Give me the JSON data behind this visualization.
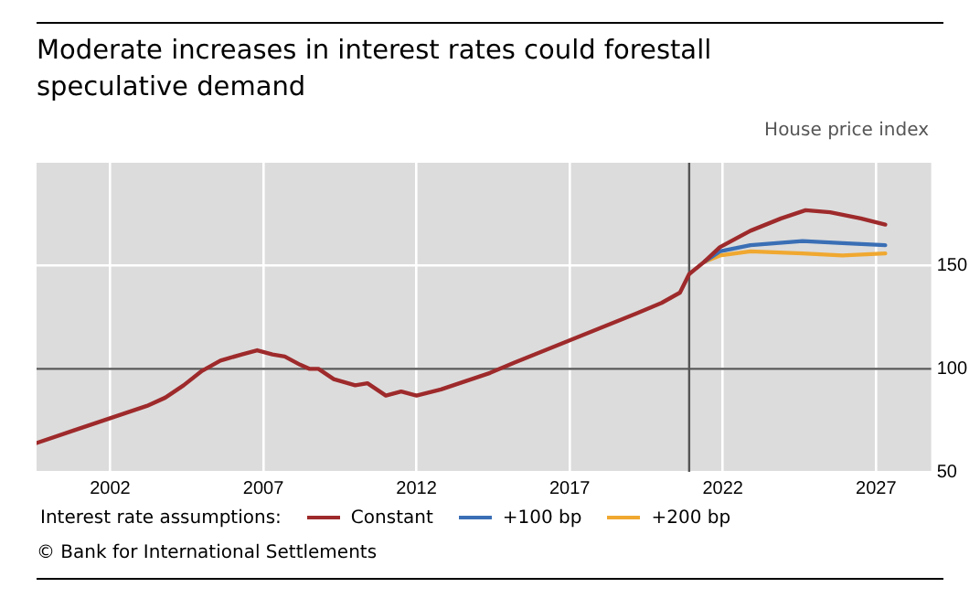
{
  "chart_data": {
    "type": "line",
    "title": "Moderate increases in interest rates could forestall speculative demand",
    "ylabel": "House price index",
    "legend_title": "Interest rate assumptions:",
    "xlim": [
      1999.6,
      2028.8
    ],
    "xticks": [
      2002,
      2007,
      2012,
      2017,
      2022,
      2027
    ],
    "ylim": [
      50,
      200
    ],
    "yticks": [
      50,
      100,
      150
    ],
    "grid": true,
    "legend": "bottom",
    "marker": "none",
    "line_style": "solid",
    "ref_lines": [
      {
        "axis": "y",
        "value": 100,
        "color": "#555555"
      },
      {
        "axis": "x",
        "value": 2020.9,
        "color": "#555555"
      }
    ],
    "annotations": [
      "© Bank for International Settlements"
    ],
    "series": [
      {
        "name": "Constant",
        "color": "#9e2a2b",
        "x": [
          1999.6,
          2000.8,
          2002.4,
          2003.2,
          2003.8,
          2004.4,
          2005.0,
          2005.6,
          2006.3,
          2006.8,
          2007.3,
          2007.7,
          2008.2,
          2008.5,
          2008.8,
          2009.3,
          2010.0,
          2010.4,
          2011.0,
          2011.5,
          2012.0,
          2012.8,
          2013.6,
          2014.4,
          2015.2,
          2016.2,
          2017.2,
          2018.2,
          2019.2,
          2020.0,
          2020.6,
          2020.9,
          2021.4,
          2021.9,
          2022.9,
          2023.9,
          2024.7,
          2025.5,
          2026.5,
          2027.3
        ],
        "values": [
          64,
          70,
          78,
          82,
          86,
          92,
          99,
          104,
          107,
          109,
          107,
          106,
          102,
          100,
          100,
          95,
          92,
          93,
          87,
          89,
          87,
          90,
          94,
          98,
          103,
          109,
          115,
          121,
          127,
          132,
          137,
          146,
          152,
          159,
          167,
          173,
          177,
          176,
          173,
          170
        ]
      },
      {
        "name": "+100 bp",
        "color": "#3a6fb5",
        "x": [
          2021.4,
          2021.9,
          2022.9,
          2024.6,
          2025.9,
          2027.3
        ],
        "values": [
          152,
          157,
          160,
          162,
          161,
          160
        ]
      },
      {
        "name": "+200 bp",
        "color": "#f0a830",
        "x": [
          2021.4,
          2021.9,
          2022.9,
          2024.6,
          2025.9,
          2027.3
        ],
        "values": [
          152,
          155,
          157,
          156,
          155,
          156
        ]
      }
    ]
  }
}
